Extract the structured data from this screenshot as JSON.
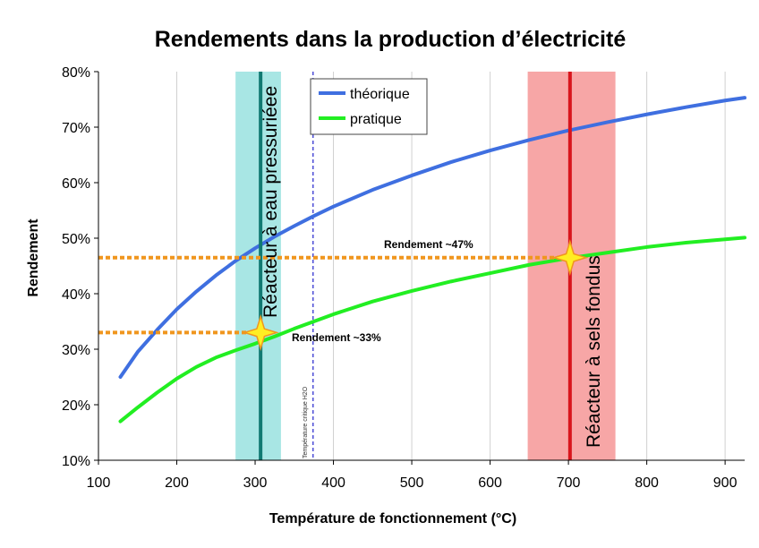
{
  "chart_data": {
    "type": "line",
    "title": "Rendements dans la production d’électricité",
    "xlabel": "Température de fonctionnement (°C)",
    "ylabel": "Rendement",
    "xlim": [
      100,
      925
    ],
    "ylim": [
      0.1,
      0.8
    ],
    "x_ticks": [
      100,
      200,
      300,
      400,
      500,
      600,
      700,
      800,
      900
    ],
    "y_ticks": [
      0.1,
      0.2,
      0.3,
      0.4,
      0.5,
      0.6,
      0.7,
      0.8
    ],
    "x_tick_labels": [
      "100",
      "200",
      "300",
      "400",
      "500",
      "600",
      "700",
      "800",
      "900"
    ],
    "y_tick_labels": [
      "10%",
      "20%",
      "30%",
      "40%",
      "50%",
      "60%",
      "70%",
      "80%"
    ],
    "grid": "vertical",
    "legend_position": "top-left-inside",
    "series": [
      {
        "name": "théorique",
        "color": "#3f6fe0",
        "x": [
          128,
          150,
          175,
          200,
          225,
          250,
          275,
          300,
          325,
          350,
          375,
          400,
          450,
          500,
          550,
          600,
          650,
          700,
          750,
          800,
          850,
          900,
          925
        ],
        "y": [
          0.25,
          0.295,
          0.335,
          0.372,
          0.404,
          0.433,
          0.459,
          0.482,
          0.503,
          0.522,
          0.54,
          0.557,
          0.587,
          0.613,
          0.637,
          0.658,
          0.677,
          0.694,
          0.709,
          0.723,
          0.736,
          0.748,
          0.753
        ]
      },
      {
        "name": "pratique",
        "color": "#22ee22",
        "x": [
          128,
          150,
          175,
          200,
          225,
          250,
          275,
          300,
          325,
          350,
          375,
          400,
          450,
          500,
          550,
          600,
          650,
          700,
          750,
          800,
          850,
          900,
          925
        ],
        "y": [
          0.17,
          0.195,
          0.222,
          0.247,
          0.268,
          0.285,
          0.298,
          0.31,
          0.323,
          0.337,
          0.35,
          0.363,
          0.386,
          0.405,
          0.422,
          0.437,
          0.452,
          0.464,
          0.474,
          0.484,
          0.492,
          0.498,
          0.501
        ]
      }
    ],
    "bands": [
      {
        "label": "Réacteur à eau pressuriéee",
        "x_from": 275,
        "x_to": 333,
        "x_line": 307,
        "band_color": "#a8e6e4",
        "line_color": "#117a72"
      },
      {
        "label": "Réacteur à sels fondus",
        "x_from": 648,
        "x_to": 760,
        "x_line": 702,
        "band_color": "#f7a6a6",
        "line_color": "#d8151c"
      }
    ],
    "critical_line": {
      "x": 374,
      "label": "Température critique H2O",
      "color": "#2222cc"
    },
    "reference_lines": [
      {
        "y": 0.33,
        "x_to": 307,
        "label": "Rendement ~33%",
        "color": "#f0961e"
      },
      {
        "y": 0.465,
        "x_to": 702,
        "label": "Rendement ~47%",
        "color": "#f0961e"
      }
    ],
    "markers": [
      {
        "x": 307,
        "y": 0.33,
        "shape": "star",
        "fill": "#ffee22",
        "stroke": "#f0961e"
      },
      {
        "x": 702,
        "y": 0.465,
        "shape": "star",
        "fill": "#ffee22",
        "stroke": "#f0961e"
      }
    ]
  }
}
